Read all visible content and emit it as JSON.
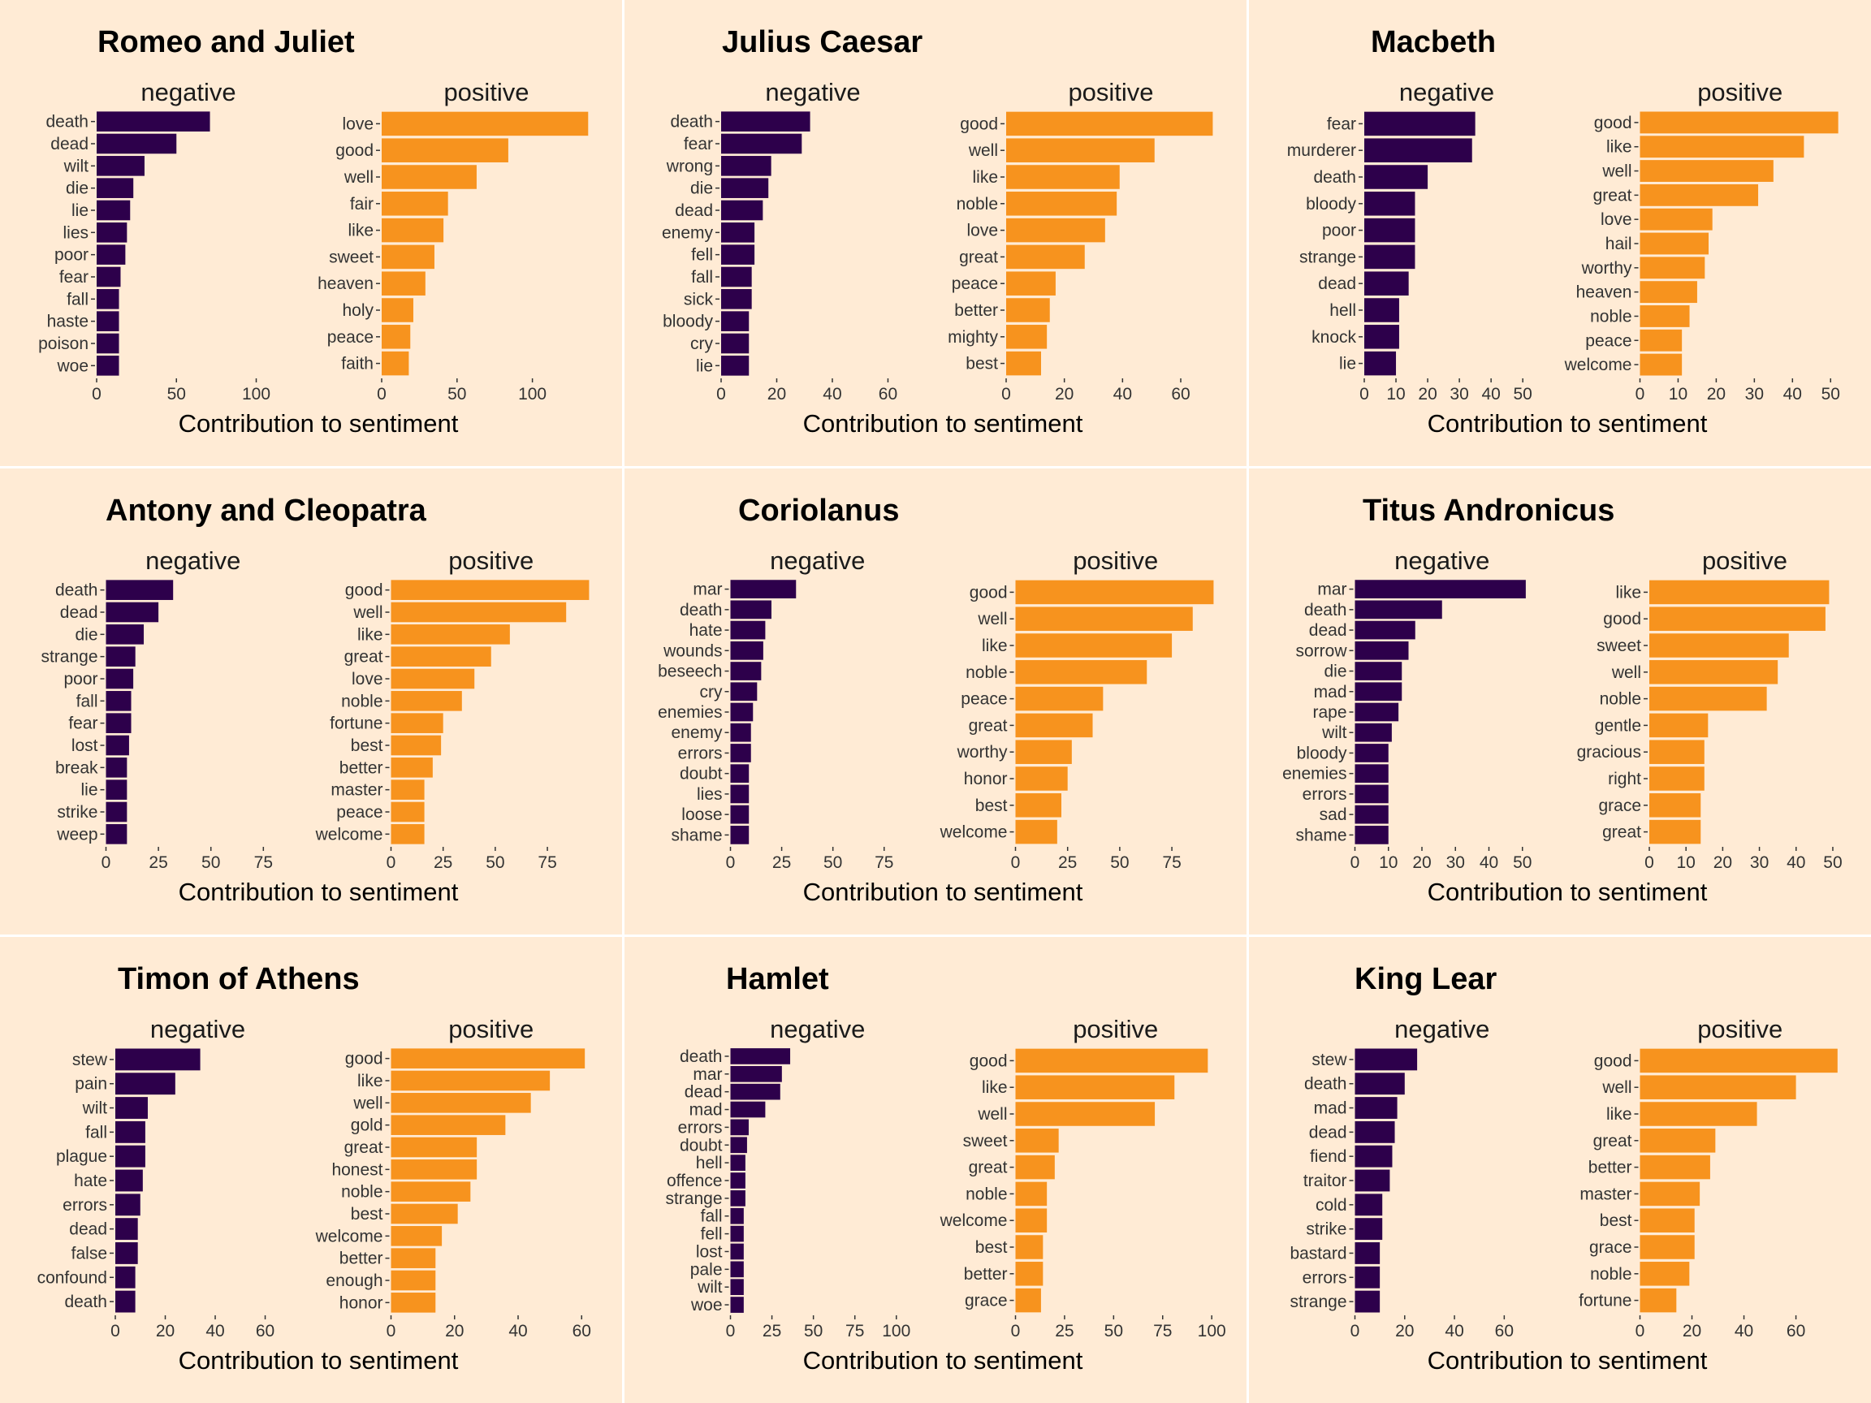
{
  "colors": {
    "negative": "#2d004b",
    "positive": "#f7931e",
    "panel_bg": "#ffebd5",
    "divider": "#ffffff"
  },
  "chart_data": [
    {
      "type": "bar",
      "title": "Romeo and Juliet",
      "xlabel": "Contribution to sentiment",
      "facets": [
        {
          "name": "negative",
          "categories": [
            "death",
            "dead",
            "wilt",
            "die",
            "lie",
            "lies",
            "poor",
            "fear",
            "fall",
            "haste",
            "poison",
            "woe"
          ],
          "values": [
            71,
            50,
            30,
            23,
            21,
            19,
            18,
            15,
            14,
            14,
            14,
            14
          ],
          "ticks": [
            0,
            50,
            100
          ],
          "xlim": [
            0,
            115
          ]
        },
        {
          "name": "positive",
          "categories": [
            "love",
            "good",
            "well",
            "fair",
            "like",
            "sweet",
            "heaven",
            "holy",
            "peace",
            "faith"
          ],
          "values": [
            137,
            84,
            63,
            44,
            41,
            35,
            29,
            21,
            19,
            18
          ],
          "ticks": [
            0,
            50,
            100
          ],
          "xlim": [
            0,
            139
          ]
        }
      ]
    },
    {
      "type": "bar",
      "title": "Julius Caesar",
      "xlabel": "Contribution to sentiment",
      "facets": [
        {
          "name": "negative",
          "categories": [
            "death",
            "fear",
            "wrong",
            "die",
            "dead",
            "enemy",
            "fell",
            "fall",
            "sick",
            "bloody",
            "cry",
            "lie"
          ],
          "values": [
            32,
            29,
            18,
            17,
            15,
            12,
            12,
            11,
            11,
            10,
            10,
            10
          ],
          "ticks": [
            0,
            20,
            40,
            60
          ],
          "xlim": [
            0,
            66
          ]
        },
        {
          "name": "positive",
          "categories": [
            "good",
            "well",
            "like",
            "noble",
            "love",
            "great",
            "peace",
            "better",
            "mighty",
            "best"
          ],
          "values": [
            71,
            51,
            39,
            38,
            34,
            27,
            17,
            15,
            14,
            12
          ],
          "ticks": [
            0,
            20,
            40,
            60
          ],
          "xlim": [
            0,
            72
          ]
        }
      ]
    },
    {
      "type": "bar",
      "title": "Macbeth",
      "xlabel": "Contribution to sentiment",
      "facets": [
        {
          "name": "negative",
          "categories": [
            "fear",
            "murderer",
            "death",
            "bloody",
            "poor",
            "strange",
            "dead",
            "hell",
            "knock",
            "lie"
          ],
          "values": [
            35,
            34,
            20,
            16,
            16,
            16,
            14,
            11,
            11,
            10
          ],
          "ticks": [
            0,
            10,
            20,
            30,
            40,
            50
          ],
          "xlim": [
            0,
            52
          ]
        },
        {
          "name": "positive",
          "categories": [
            "good",
            "like",
            "well",
            "great",
            "love",
            "hail",
            "worthy",
            "heaven",
            "noble",
            "peace",
            "welcome"
          ],
          "values": [
            52,
            43,
            35,
            31,
            19,
            18,
            17,
            15,
            13,
            11,
            11
          ],
          "ticks": [
            0,
            10,
            20,
            30,
            40,
            50
          ],
          "xlim": [
            0,
            52.5
          ]
        }
      ]
    },
    {
      "type": "bar",
      "title": "Antony and Cleopatra",
      "xlabel": "Contribution to sentiment",
      "facets": [
        {
          "name": "negative",
          "categories": [
            "death",
            "dead",
            "die",
            "strange",
            "poor",
            "fall",
            "fear",
            "lost",
            "break",
            "lie",
            "strike",
            "weep"
          ],
          "values": [
            32,
            25,
            18,
            14,
            13,
            12,
            12,
            11,
            10,
            10,
            10,
            10
          ],
          "ticks": [
            0,
            25,
            50,
            75
          ],
          "xlim": [
            0,
            83
          ]
        },
        {
          "name": "positive",
          "categories": [
            "good",
            "well",
            "like",
            "great",
            "love",
            "noble",
            "fortune",
            "best",
            "better",
            "master",
            "peace",
            "welcome"
          ],
          "values": [
            95,
            84,
            57,
            48,
            40,
            34,
            25,
            24,
            20,
            16,
            16,
            16
          ],
          "ticks": [
            0,
            25,
            50,
            75
          ],
          "xlim": [
            0,
            96
          ]
        }
      ]
    },
    {
      "type": "bar",
      "title": "Coriolanus",
      "xlabel": "Contribution to sentiment",
      "facets": [
        {
          "name": "negative",
          "categories": [
            "mar",
            "death",
            "hate",
            "wounds",
            "beseech",
            "cry",
            "enemies",
            "enemy",
            "errors",
            "doubt",
            "lies",
            "loose",
            "shame"
          ],
          "values": [
            32,
            20,
            17,
            16,
            15,
            13,
            11,
            10,
            10,
            9,
            9,
            9,
            9
          ],
          "ticks": [
            0,
            25,
            50,
            75
          ],
          "xlim": [
            0,
            85
          ]
        },
        {
          "name": "positive",
          "categories": [
            "good",
            "well",
            "like",
            "noble",
            "peace",
            "great",
            "worthy",
            "honor",
            "best",
            "welcome"
          ],
          "values": [
            95,
            85,
            75,
            63,
            42,
            37,
            27,
            25,
            22,
            20
          ],
          "ticks": [
            0,
            25,
            50,
            75
          ],
          "xlim": [
            0,
            96
          ]
        }
      ]
    },
    {
      "type": "bar",
      "title": "Titus Andronicus",
      "xlabel": "Contribution to sentiment",
      "facets": [
        {
          "name": "negative",
          "categories": [
            "mar",
            "death",
            "dead",
            "sorrow",
            "die",
            "mad",
            "rape",
            "wilt",
            "bloody",
            "enemies",
            "errors",
            "sad",
            "shame"
          ],
          "values": [
            51,
            26,
            18,
            16,
            14,
            14,
            13,
            11,
            10,
            10,
            10,
            10,
            10
          ],
          "ticks": [
            0,
            10,
            20,
            30,
            40,
            50
          ],
          "xlim": [
            0,
            52
          ]
        },
        {
          "name": "positive",
          "categories": [
            "like",
            "good",
            "sweet",
            "well",
            "noble",
            "gentle",
            "gracious",
            "right",
            "grace",
            "great"
          ],
          "values": [
            49,
            48,
            38,
            35,
            32,
            16,
            15,
            15,
            14,
            14
          ],
          "ticks": [
            0,
            10,
            20,
            30,
            40,
            50
          ],
          "xlim": [
            0,
            52
          ]
        }
      ]
    },
    {
      "type": "bar",
      "title": "Timon of Athens",
      "xlabel": "Contribution to sentiment",
      "facets": [
        {
          "name": "negative",
          "categories": [
            "stew",
            "pain",
            "wilt",
            "fall",
            "plague",
            "hate",
            "errors",
            "dead",
            "false",
            "confound",
            "death"
          ],
          "values": [
            34,
            24,
            13,
            12,
            12,
            11,
            10,
            9,
            9,
            8,
            8
          ],
          "ticks": [
            0,
            20,
            40,
            60
          ],
          "xlim": [
            0,
            66
          ]
        },
        {
          "name": "positive",
          "categories": [
            "good",
            "like",
            "well",
            "gold",
            "great",
            "honest",
            "noble",
            "best",
            "welcome",
            "better",
            "enough",
            "honor"
          ],
          "values": [
            61,
            50,
            44,
            36,
            27,
            27,
            25,
            21,
            16,
            14,
            14,
            14
          ],
          "ticks": [
            0,
            20,
            40,
            60
          ],
          "xlim": [
            0,
            63
          ]
        }
      ]
    },
    {
      "type": "bar",
      "title": "Hamlet",
      "xlabel": "Contribution to sentiment",
      "facets": [
        {
          "name": "negative",
          "categories": [
            "death",
            "mar",
            "dead",
            "mad",
            "errors",
            "doubt",
            "hell",
            "offence",
            "strange",
            "fall",
            "fell",
            "lost",
            "pale",
            "wilt",
            "woe"
          ],
          "values": [
            36,
            31,
            30,
            21,
            11,
            10,
            9,
            9,
            9,
            8,
            8,
            8,
            8,
            8,
            8
          ],
          "ticks": [
            0,
            25,
            50,
            75,
            100
          ],
          "xlim": [
            0,
            105
          ]
        },
        {
          "name": "positive",
          "categories": [
            "good",
            "like",
            "well",
            "sweet",
            "great",
            "noble",
            "welcome",
            "best",
            "better",
            "grace"
          ],
          "values": [
            98,
            81,
            71,
            22,
            20,
            16,
            16,
            14,
            14,
            13
          ],
          "ticks": [
            0,
            25,
            50,
            75,
            100
          ],
          "xlim": [
            0,
            102
          ]
        }
      ]
    },
    {
      "type": "bar",
      "title": "King Lear",
      "xlabel": "Contribution to sentiment",
      "facets": [
        {
          "name": "negative",
          "categories": [
            "stew",
            "death",
            "mad",
            "dead",
            "fiend",
            "traitor",
            "cold",
            "strike",
            "bastard",
            "errors",
            "strange"
          ],
          "values": [
            25,
            20,
            17,
            16,
            15,
            14,
            11,
            11,
            10,
            10,
            10
          ],
          "ticks": [
            0,
            20,
            40,
            60
          ],
          "xlim": [
            0,
            70
          ]
        },
        {
          "name": "positive",
          "categories": [
            "good",
            "well",
            "like",
            "great",
            "better",
            "master",
            "best",
            "grace",
            "noble",
            "fortune"
          ],
          "values": [
            76,
            60,
            45,
            29,
            27,
            23,
            21,
            21,
            19,
            14
          ],
          "ticks": [
            0,
            20,
            40,
            60
          ],
          "xlim": [
            0,
            77
          ]
        }
      ]
    }
  ]
}
